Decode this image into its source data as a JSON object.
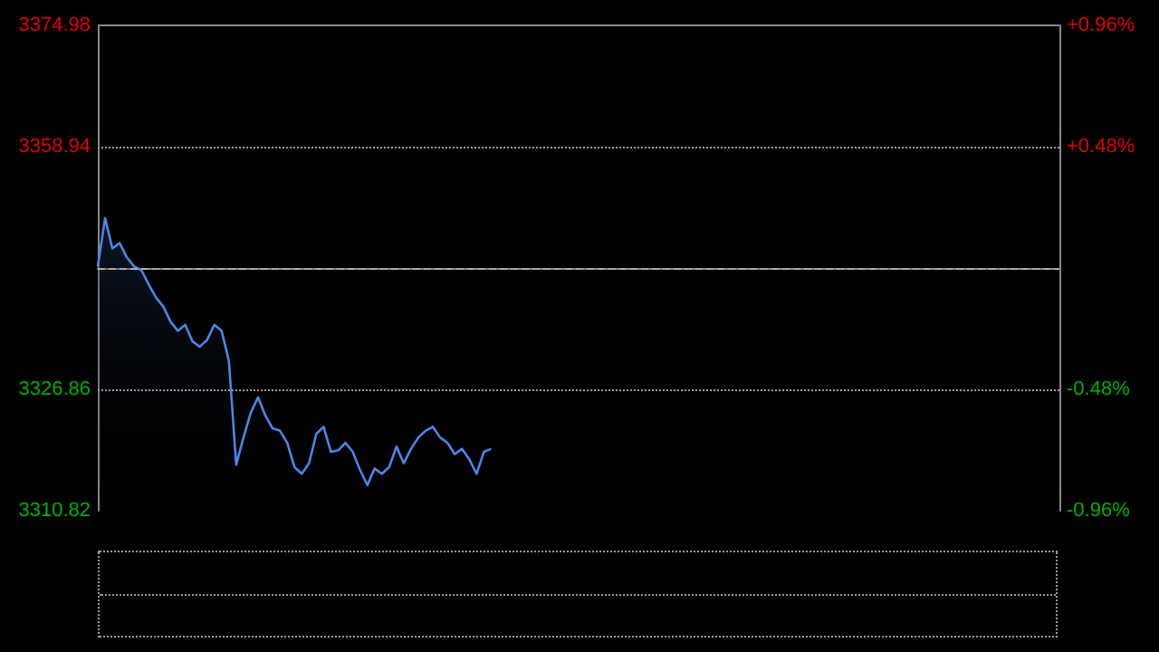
{
  "chart_data": {
    "type": "area",
    "categories": [
      null,
      null,
      null,
      null,
      null,
      null,
      null,
      null,
      null,
      null,
      null,
      null,
      null,
      null,
      null,
      null,
      null,
      null,
      null,
      null,
      null,
      null,
      null,
      null,
      null,
      null,
      null,
      null,
      null,
      null,
      null,
      null,
      null,
      null,
      null,
      null,
      null,
      null,
      null,
      null,
      null,
      null,
      null,
      null,
      null,
      null,
      null,
      null,
      null,
      null,
      null,
      null,
      null,
      null,
      null,
      null,
      null,
      null,
      null,
      null,
      null,
      null,
      null,
      null,
      null,
      null,
      null,
      null,
      null,
      null,
      null,
      null,
      null,
      null,
      null,
      null,
      null,
      null,
      null,
      null,
      null,
      null,
      null,
      null,
      null,
      null,
      null,
      null,
      null,
      null,
      null,
      null,
      null,
      null,
      null,
      null,
      null,
      null,
      null,
      null,
      null,
      null,
      null,
      null,
      null,
      null,
      null,
      null,
      null,
      null,
      null,
      null,
      null,
      null,
      null,
      null,
      null,
      null,
      null,
      null,
      null,
      null,
      null,
      null,
      null,
      null,
      null,
      null,
      null,
      null,
      null,
      null,
      null
    ],
    "series": [
      {
        "color": "#4a86e8",
        "values": [
          3343.1,
          3349.5,
          3345.5,
          3346.2,
          3344.3,
          3343.1,
          3342.6,
          3340.7,
          3339.0,
          3337.8,
          3335.8,
          3334.6,
          3335.4,
          3333.2,
          3332.5,
          3333.4,
          3335.4,
          3334.6,
          3330.6,
          3316.9,
          3320.5,
          3323.8,
          3325.8,
          3323.4,
          3321.7,
          3321.4,
          3319.8,
          3316.6,
          3315.7,
          3317.1,
          3321.0,
          3321.9,
          3318.6,
          3318.8,
          3319.8,
          3318.6,
          3316.2,
          3314.2,
          3316.4,
          3315.7,
          3316.6,
          3319.3,
          3317.1,
          3319.0,
          3320.5,
          3321.4,
          3321.9,
          3320.5,
          3319.8,
          3318.3,
          3319.0,
          3317.6,
          3315.7,
          3318.6,
          3319.0,
          null,
          null,
          null,
          null,
          null,
          null,
          null,
          null,
          null,
          null,
          null,
          null,
          null,
          null,
          null,
          null,
          null,
          null,
          null,
          null,
          null,
          null,
          null,
          null,
          null,
          null,
          null,
          null,
          null,
          null,
          null,
          null,
          null,
          null,
          null,
          null,
          null,
          null,
          null,
          null,
          null,
          null,
          null,
          null,
          null,
          null,
          null,
          null,
          null,
          null,
          null,
          null,
          null,
          null,
          null,
          null,
          null,
          null,
          null,
          null,
          null,
          null,
          null,
          null,
          null,
          null,
          null,
          null,
          null,
          null,
          null,
          null,
          null,
          null,
          null,
          null,
          null,
          null
        ]
      }
    ],
    "ylim": [
      3310.82,
      3374.98
    ],
    "yticks": [
      3310.82,
      3326.86,
      {
        "value": 3342.9,
        "label": null
      },
      3358.94,
      3374.98
    ],
    "y2lim": [
      -0.96,
      0.96
    ],
    "y2ticks": [
      {
        "value": -0.96,
        "label": "-0.96%"
      },
      {
        "value": -0.48,
        "label": "-0.48%"
      },
      {
        "value": 0,
        "label": null
      },
      {
        "value": 0.48,
        "label": "+0.48%"
      },
      {
        "value": 0.96,
        "label": "+0.96%"
      }
    ],
    "ref_lines": [
      {
        "axis": "y",
        "value": 3342.9,
        "label": null,
        "color": "#aaaaaa",
        "line_style": "dashed"
      }
    ],
    "grid": "y",
    "marker": "none",
    "line_style": "solid"
  }
}
